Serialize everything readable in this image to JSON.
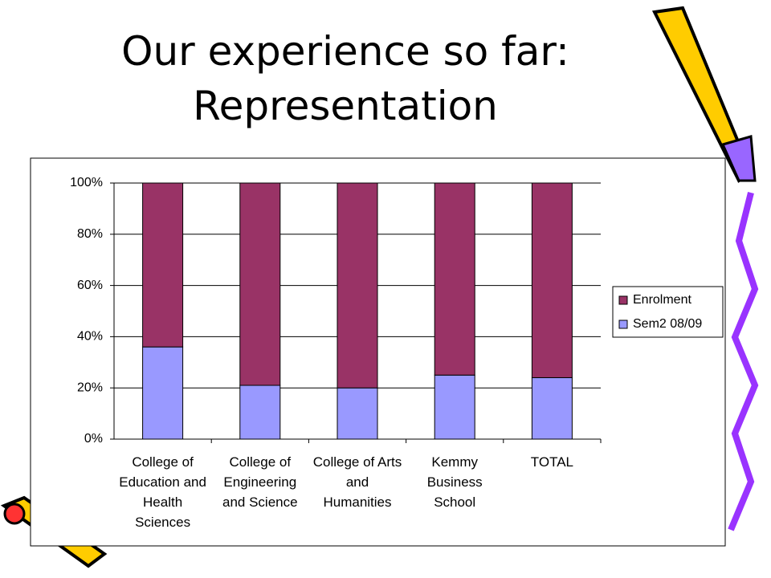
{
  "chart_data": {
    "type": "stacked_bar",
    "title": "Our experience so far: Representation",
    "categories": [
      "College of Education and Health Sciences",
      "College of Engineering and Science",
      "College of Arts and Humanities",
      "Kemmy Business School",
      "TOTAL"
    ],
    "series": [
      {
        "name": "Sem2 08/09",
        "color": "#9999ff",
        "values": [
          36,
          21,
          20,
          25,
          24
        ]
      },
      {
        "name": "Enrolment",
        "color": "#993366",
        "values": [
          64,
          79,
          80,
          75,
          76
        ]
      }
    ],
    "ylim": [
      0,
      100
    ],
    "yticks": [
      {
        "value": 0,
        "label": "0%"
      },
      {
        "value": 20,
        "label": "20%"
      },
      {
        "value": 40,
        "label": "40%"
      },
      {
        "value": 60,
        "label": "60%"
      },
      {
        "value": 80,
        "label": "80%"
      },
      {
        "value": 100,
        "label": "100%"
      }
    ],
    "grid": true,
    "legend": "right"
  }
}
